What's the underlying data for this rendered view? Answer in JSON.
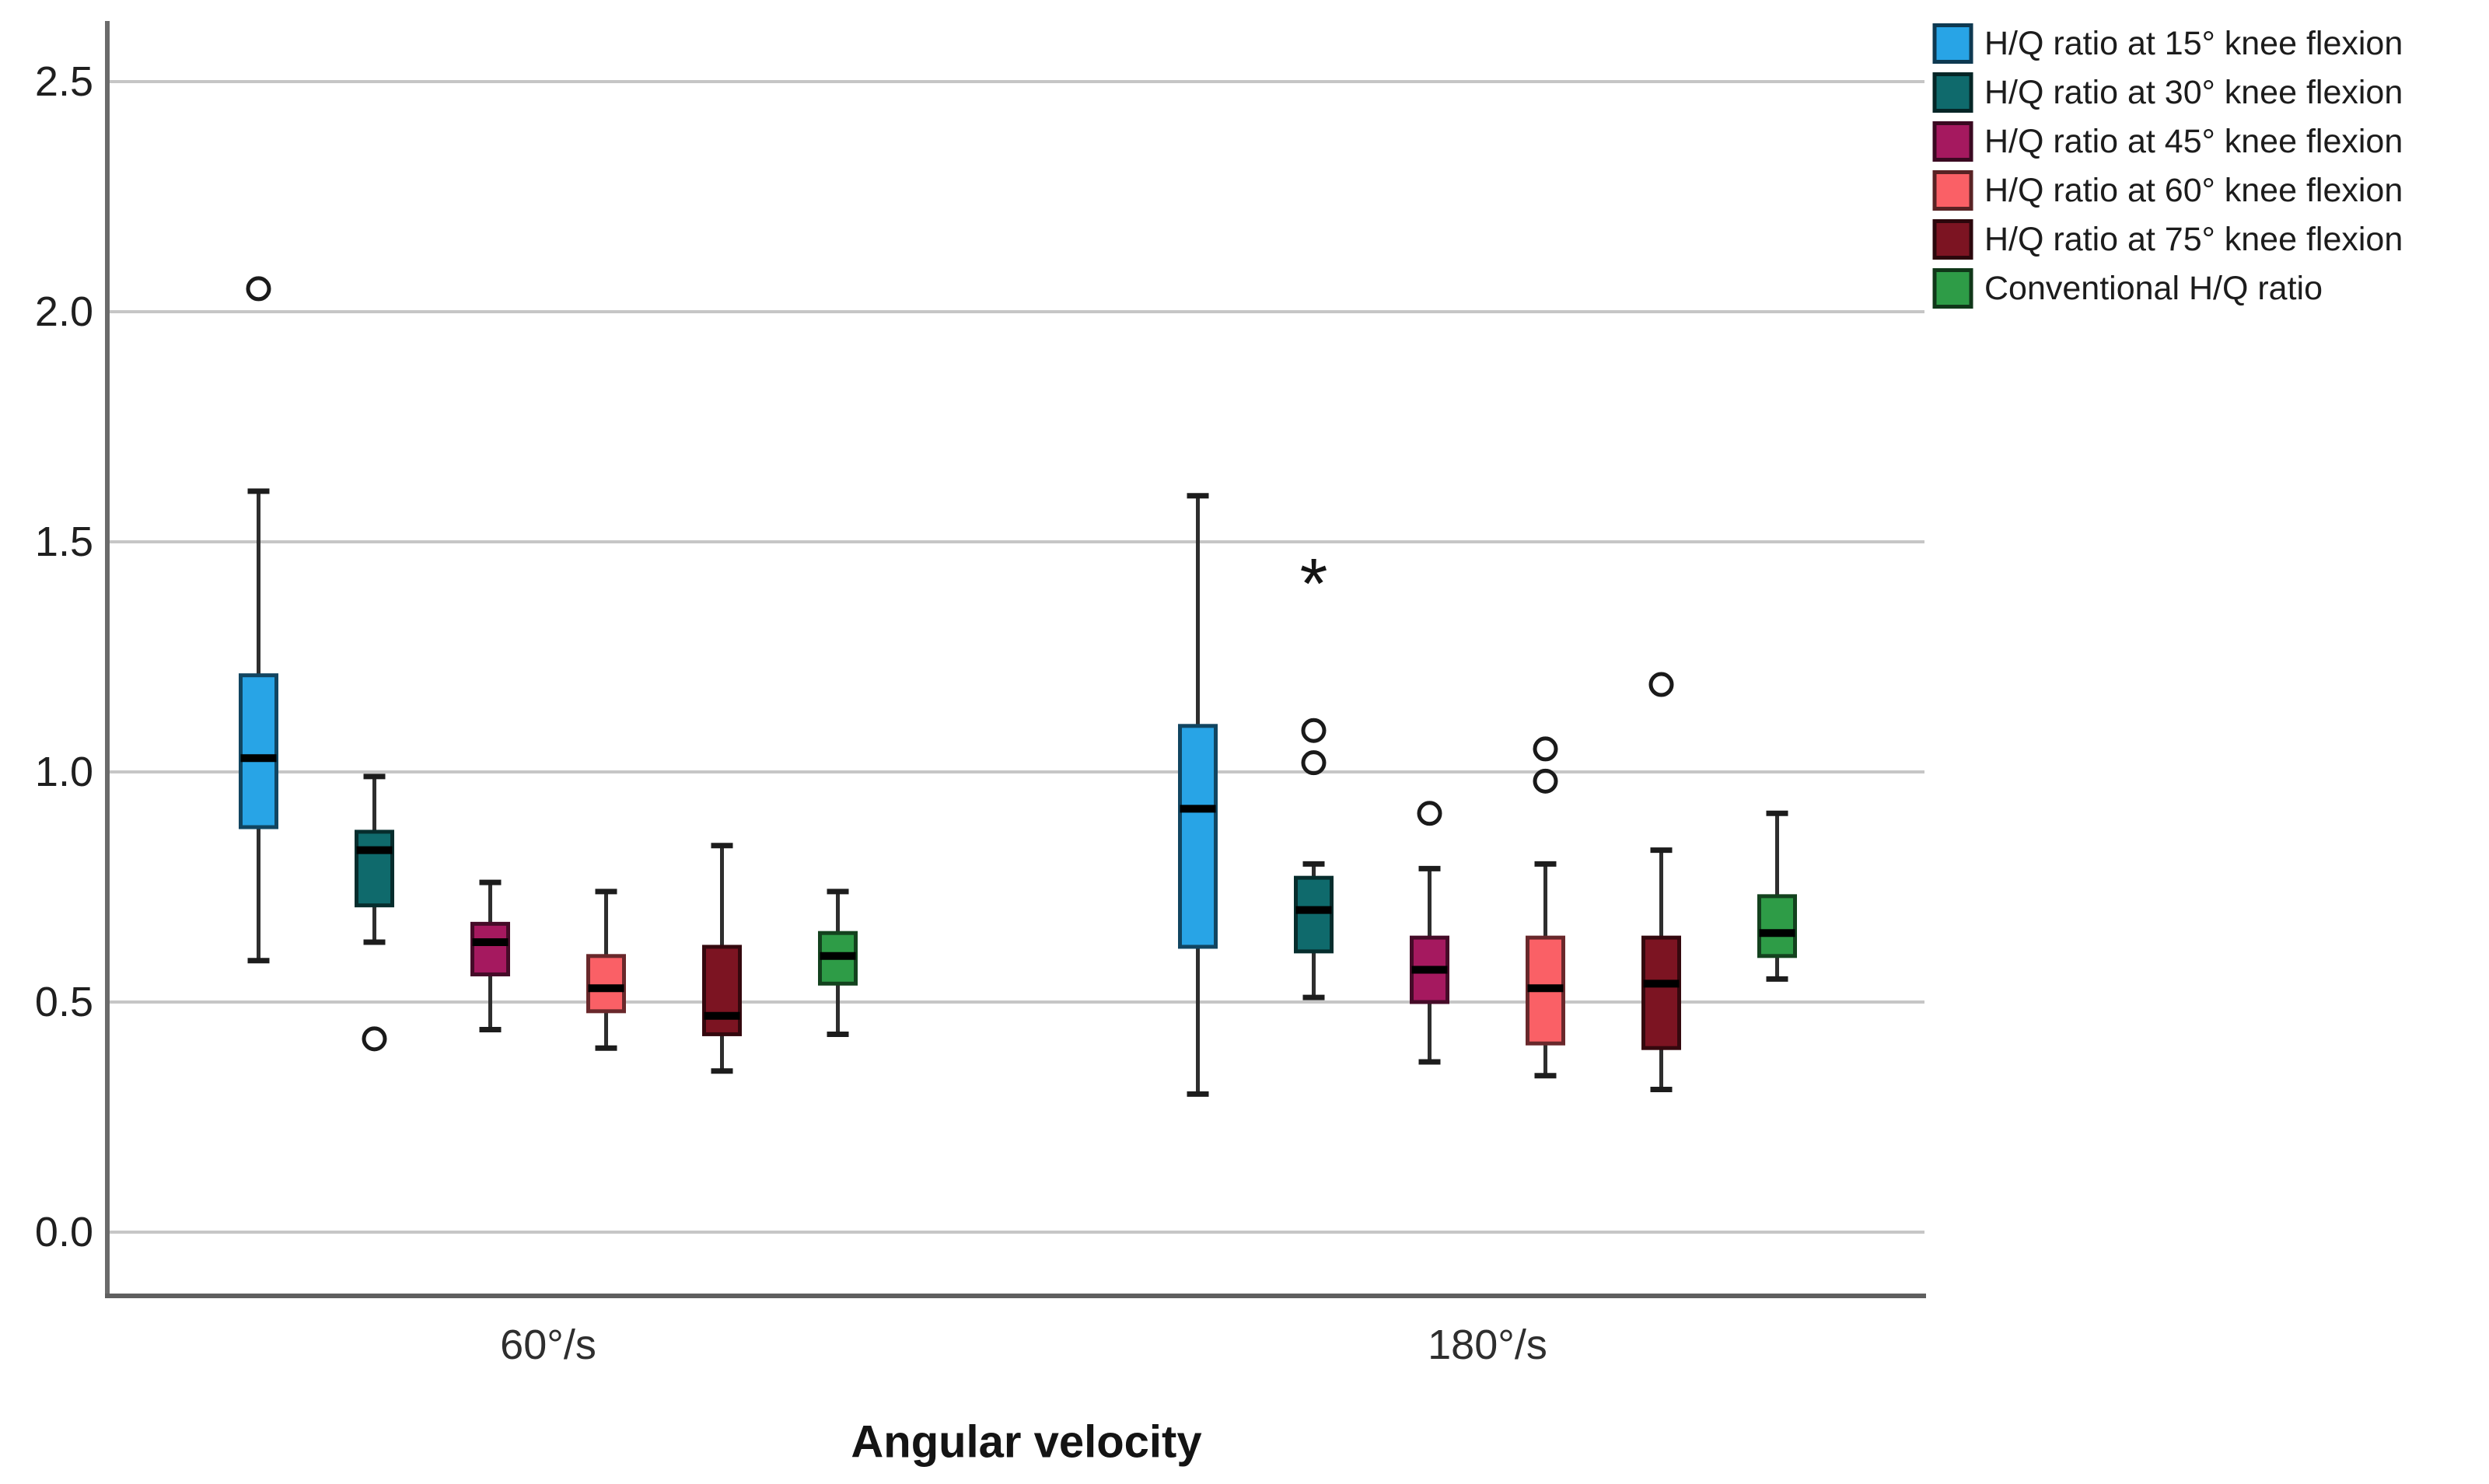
{
  "chart_data": {
    "type": "boxplot",
    "title": "",
    "xlabel": "Angular velocity",
    "ylabel": "",
    "ylim": [
      0.0,
      2.5
    ],
    "y_ticks": [
      "0.0",
      "0.5",
      "1.0",
      "1.5",
      "2.0",
      "2.5"
    ],
    "grid": "horizontal",
    "legend_position": "top-right",
    "outlier_marker": "o",
    "extreme_marker": "*",
    "categories": [
      "60°/s",
      "180°/s"
    ],
    "series": [
      {
        "name": "H/Q ratio at 15° knee flexion",
        "color": "#28A4E6",
        "boxes": [
          {
            "whisker_low": 0.59,
            "q1": 0.88,
            "median": 1.03,
            "q3": 1.21,
            "whisker_high": 1.61,
            "outliers": [
              2.05
            ],
            "extremes": []
          },
          {
            "whisker_low": 0.3,
            "q1": 0.62,
            "median": 0.92,
            "q3": 1.1,
            "whisker_high": 1.6,
            "outliers": [],
            "extremes": []
          }
        ]
      },
      {
        "name": "H/Q ratio at 30° knee flexion",
        "color": "#0F6A6C",
        "boxes": [
          {
            "whisker_low": 0.63,
            "q1": 0.71,
            "median": 0.83,
            "q3": 0.87,
            "whisker_high": 0.99,
            "outliers": [
              0.42
            ],
            "extremes": []
          },
          {
            "whisker_low": 0.51,
            "q1": 0.61,
            "median": 0.7,
            "q3": 0.77,
            "whisker_high": 0.8,
            "outliers": [
              1.02,
              1.09
            ],
            "extremes": [
              1.43
            ]
          }
        ]
      },
      {
        "name": "H/Q ratio at 45° knee flexion",
        "color": "#A5195F",
        "boxes": [
          {
            "whisker_low": 0.44,
            "q1": 0.56,
            "median": 0.63,
            "q3": 0.67,
            "whisker_high": 0.76,
            "outliers": [],
            "extremes": []
          },
          {
            "whisker_low": 0.37,
            "q1": 0.5,
            "median": 0.57,
            "q3": 0.64,
            "whisker_high": 0.79,
            "outliers": [
              0.91
            ],
            "extremes": []
          }
        ]
      },
      {
        "name": "H/Q ratio at 60° knee flexion",
        "color": "#FA6066",
        "boxes": [
          {
            "whisker_low": 0.4,
            "q1": 0.48,
            "median": 0.53,
            "q3": 0.6,
            "whisker_high": 0.74,
            "outliers": [],
            "extremes": []
          },
          {
            "whisker_low": 0.34,
            "q1": 0.41,
            "median": 0.53,
            "q3": 0.64,
            "whisker_high": 0.8,
            "outliers": [
              0.98,
              1.05
            ],
            "extremes": []
          }
        ]
      },
      {
        "name": "H/Q ratio at 75° knee flexion",
        "color": "#7C1422",
        "boxes": [
          {
            "whisker_low": 0.35,
            "q1": 0.43,
            "median": 0.47,
            "q3": 0.62,
            "whisker_high": 0.84,
            "outliers": [],
            "extremes": []
          },
          {
            "whisker_low": 0.31,
            "q1": 0.4,
            "median": 0.54,
            "q3": 0.64,
            "whisker_high": 0.83,
            "outliers": [
              1.19
            ],
            "extremes": []
          }
        ]
      },
      {
        "name": "Conventional H/Q ratio",
        "color": "#2E9C47",
        "boxes": [
          {
            "whisker_low": 0.43,
            "q1": 0.54,
            "median": 0.6,
            "q3": 0.65,
            "whisker_high": 0.74,
            "outliers": [],
            "extremes": []
          },
          {
            "whisker_low": 0.55,
            "q1": 0.6,
            "median": 0.65,
            "q3": 0.73,
            "whisker_high": 0.91,
            "outliers": [],
            "extremes": []
          }
        ]
      }
    ]
  }
}
